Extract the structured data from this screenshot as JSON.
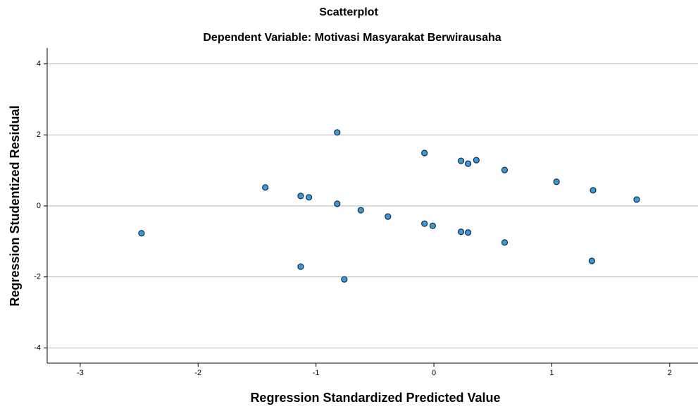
{
  "chart_data": {
    "type": "scatter",
    "title": "Scatterplot",
    "subtitle": "Dependent Variable: Motivasi Masyarakat Berwirausaha",
    "x_label": "Regression Standardized Predicted Value",
    "y_label": "Regression Studentized Residual",
    "x": [
      -2.48,
      -1.43,
      -1.13,
      -1.06,
      -1.13,
      -0.82,
      -0.82,
      -0.76,
      -0.62,
      -0.39,
      -0.08,
      -0.08,
      -0.01,
      0.23,
      0.29,
      0.36,
      0.23,
      0.29,
      0.6,
      0.6,
      1.04,
      1.35,
      1.34,
      1.72
    ],
    "values": [
      -0.77,
      0.52,
      0.28,
      0.24,
      -1.71,
      2.07,
      0.06,
      -2.07,
      -0.12,
      -0.3,
      1.49,
      -0.5,
      -0.56,
      1.27,
      1.19,
      1.29,
      -0.73,
      -0.75,
      1.01,
      -1.03,
      0.68,
      0.44,
      -1.55,
      0.18
    ],
    "color": "#3a9ad9",
    "xlim": [
      -3.28,
      2.24
    ],
    "xticks": [
      -3,
      -2,
      -1,
      0,
      1,
      2
    ],
    "ylim": [
      -4.43,
      4.45
    ],
    "yticks": [
      -4,
      -2,
      0,
      2,
      4
    ],
    "grid": true
  }
}
